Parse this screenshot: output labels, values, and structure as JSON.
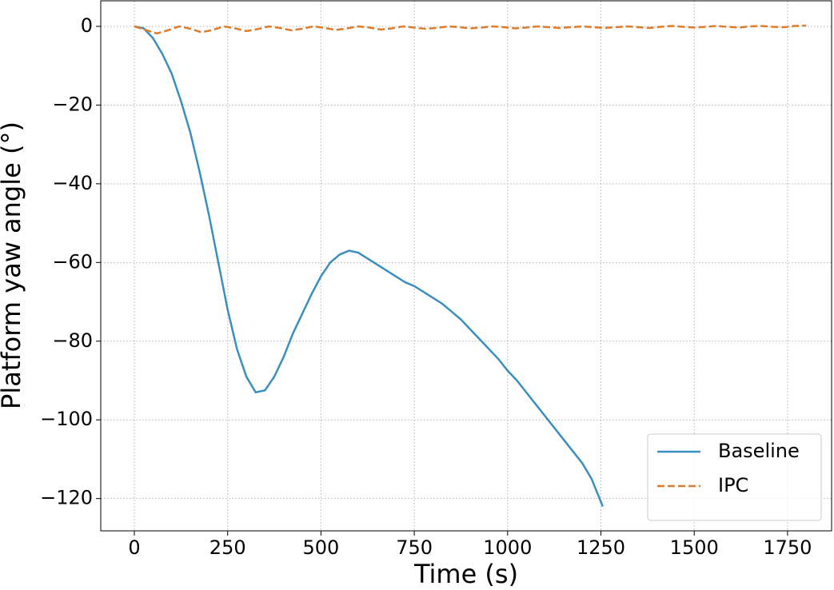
{
  "chart_data": {
    "type": "line",
    "xlabel": "Time (s)",
    "ylabel": "Platform yaw angle (°)",
    "xlim": [
      -90,
      1868
    ],
    "ylim": [
      -128.2,
      6.5
    ],
    "xticks": [
      0,
      250,
      500,
      750,
      1000,
      1250,
      1500,
      1750
    ],
    "yticks": [
      {
        "value": -120,
        "label": "−120"
      },
      {
        "value": -100,
        "label": "−100"
      },
      {
        "value": -80,
        "label": "−80"
      },
      {
        "value": -60,
        "label": "−60"
      },
      {
        "value": -40,
        "label": "−40"
      },
      {
        "value": -20,
        "label": "−20"
      },
      0
    ],
    "grid": true,
    "legend": "lower right",
    "series": [
      {
        "name": "Baseline",
        "color": "#3a8fc0",
        "dash": "solid",
        "x": [
          0,
          25,
          50,
          75,
          100,
          125,
          150,
          175,
          200,
          225,
          250,
          275,
          300,
          325,
          350,
          375,
          400,
          425,
          450,
          475,
          500,
          525,
          550,
          575,
          600,
          625,
          650,
          675,
          700,
          725,
          750,
          775,
          800,
          825,
          850,
          875,
          900,
          925,
          950,
          975,
          1000,
          1025,
          1050,
          1075,
          1100,
          1125,
          1150,
          1175,
          1200,
          1225,
          1255
        ],
        "values": [
          0,
          -0.5,
          -3,
          -7,
          -12,
          -19,
          -27,
          -37,
          -48,
          -60,
          -72,
          -82,
          -89,
          -93,
          -92.5,
          -89,
          -84,
          -78,
          -73,
          -68,
          -63.5,
          -60,
          -58,
          -57,
          -57.5,
          -59,
          -60.5,
          -62,
          -63.5,
          -65,
          -66,
          -67.5,
          -69,
          -70.5,
          -72.5,
          -74.5,
          -77,
          -79.5,
          -82,
          -84.5,
          -87.5,
          -90,
          -93,
          -96,
          -99,
          -102,
          -105,
          -108,
          -111,
          -115,
          -122
        ]
      },
      {
        "name": "IPC",
        "color": "#e07b2a",
        "dash": "dashed",
        "x": [
          0,
          30,
          60,
          90,
          120,
          150,
          180,
          210,
          240,
          270,
          300,
          330,
          360,
          390,
          420,
          450,
          480,
          510,
          540,
          570,
          600,
          630,
          660,
          690,
          720,
          750,
          780,
          810,
          840,
          870,
          900,
          930,
          960,
          990,
          1020,
          1050,
          1080,
          1110,
          1140,
          1170,
          1200,
          1230,
          1260,
          1290,
          1320,
          1350,
          1380,
          1410,
          1440,
          1470,
          1500,
          1530,
          1560,
          1590,
          1620,
          1650,
          1680,
          1710,
          1740,
          1770,
          1800
        ],
        "values": [
          0,
          -0.9,
          -1.8,
          -1.0,
          0,
          -0.6,
          -1.5,
          -0.9,
          0,
          -0.5,
          -1.2,
          -0.7,
          0,
          -0.4,
          -1.0,
          -0.6,
          0,
          -0.4,
          -0.9,
          -0.5,
          0,
          -0.3,
          -0.8,
          -0.5,
          0,
          -0.3,
          -0.6,
          -0.4,
          0,
          -0.2,
          -0.5,
          -0.3,
          0,
          -0.2,
          -0.5,
          -0.3,
          0,
          -0.2,
          -0.4,
          -0.2,
          0,
          -0.2,
          -0.4,
          -0.2,
          0,
          -0.2,
          -0.4,
          -0.1,
          0.1,
          -0.1,
          -0.3,
          -0.1,
          0.1,
          -0.1,
          -0.3,
          0,
          0.1,
          -0.1,
          -0.2,
          0.1,
          0.2
        ]
      }
    ]
  }
}
